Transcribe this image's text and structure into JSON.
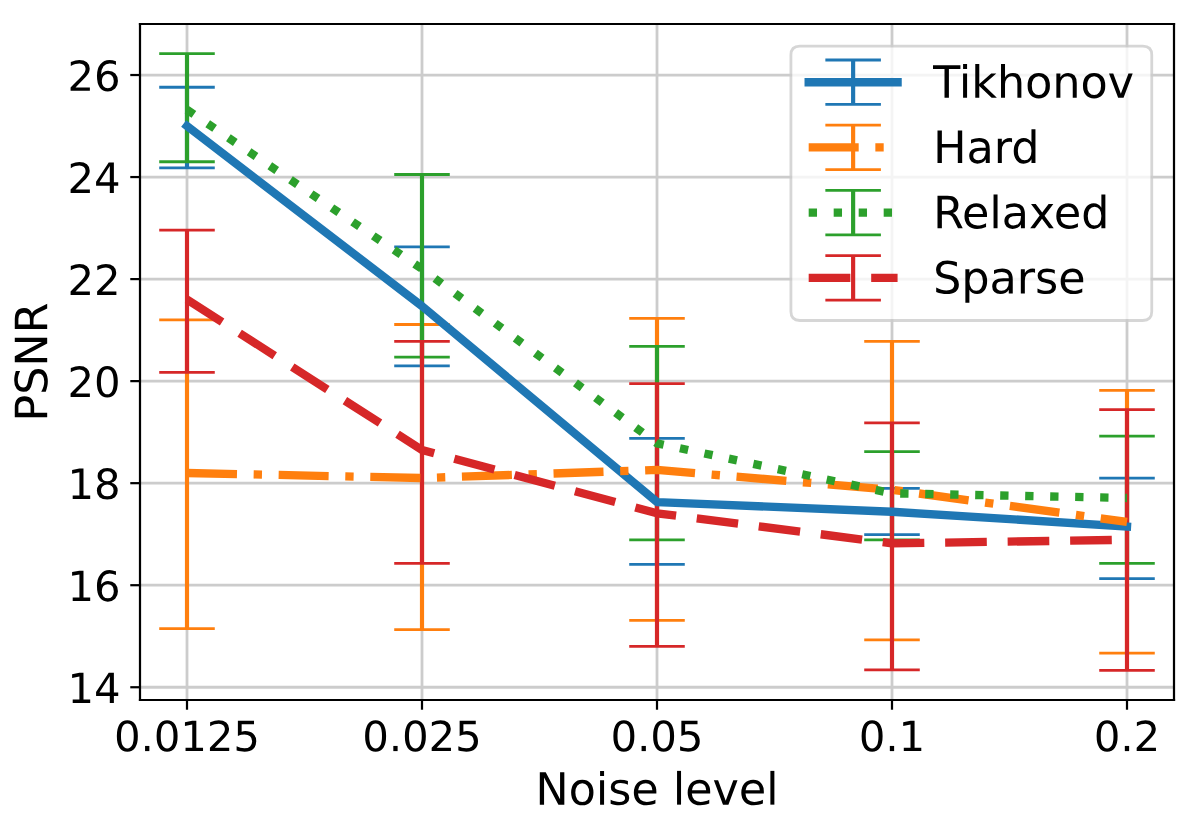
{
  "chart_data": {
    "type": "line",
    "xlabel": "Noise level",
    "ylabel": "PSNR",
    "categories": [
      "0.0125",
      "0.025",
      "0.05",
      "0.1",
      "0.2"
    ],
    "ylim": [
      13.75,
      27
    ],
    "yticks": [
      14,
      16,
      18,
      20,
      22,
      24,
      26
    ],
    "grid": true,
    "legend": "top right",
    "series": [
      {
        "name": "Tikhonov",
        "color": "#1f77b4",
        "line_style": "solid",
        "values": [
          25.0,
          21.47,
          17.63,
          17.44,
          17.15
        ],
        "errors": [
          [
            24.18,
            25.76
          ],
          [
            20.3,
            22.63
          ],
          [
            16.41,
            18.88
          ],
          [
            16.99,
            17.9
          ],
          [
            16.13,
            18.1
          ]
        ]
      },
      {
        "name": "Hard",
        "color": "#ff7f0e",
        "line_style": "dashdot",
        "values": [
          18.2,
          18.1,
          18.26,
          17.87,
          17.24
        ],
        "errors": [
          [
            15.15,
            21.2
          ],
          [
            15.13,
            21.11
          ],
          [
            15.31,
            21.23
          ],
          [
            14.93,
            20.78
          ],
          [
            14.67,
            19.82
          ]
        ]
      },
      {
        "name": "Relaxed",
        "color": "#2ca02c",
        "line_style": "dotted",
        "values": [
          25.32,
          22.2,
          18.78,
          17.8,
          17.71
        ],
        "errors": [
          [
            24.3,
            26.42
          ],
          [
            20.47,
            24.05
          ],
          [
            16.89,
            20.68
          ],
          [
            16.89,
            18.62
          ],
          [
            16.43,
            18.92
          ]
        ]
      },
      {
        "name": "Sparse",
        "color": "#d62728",
        "line_style": "dashed",
        "values": [
          21.6,
          18.65,
          17.41,
          16.82,
          16.89
        ],
        "errors": [
          [
            20.17,
            22.96
          ],
          [
            16.43,
            20.78
          ],
          [
            14.8,
            19.95
          ],
          [
            14.34,
            19.18
          ],
          [
            14.33,
            19.44
          ]
        ]
      }
    ]
  }
}
